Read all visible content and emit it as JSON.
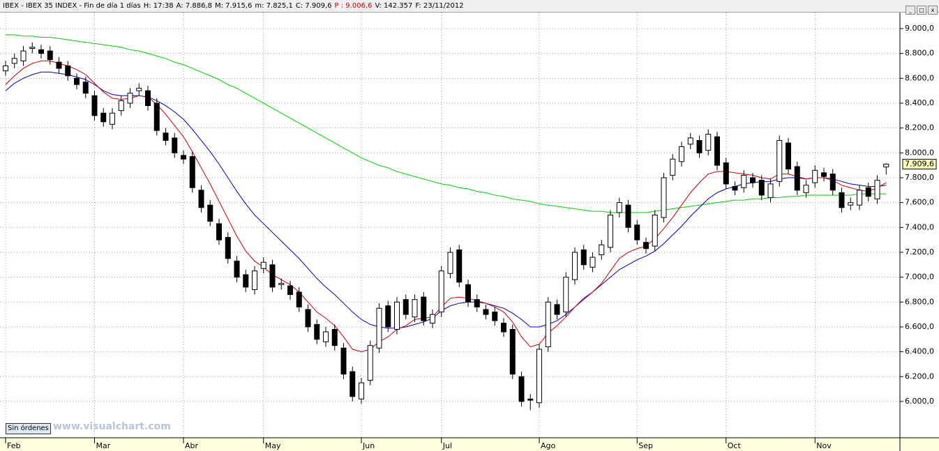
{
  "header": [
    "IBEX - IBEX 35 INDEX - Fin de día 1 días",
    "H: 17:38",
    "A: 7.886,8",
    "M: 7.915,6",
    "m: 7.825,1",
    "C: 7.909,6",
    "P : 9.006,6",
    "V: 142.357",
    "F: 23/11/2012"
  ],
  "button": "Sin órdenes",
  "watermark": "www.visualchart.com",
  "chart_data": {
    "type": "candlestick",
    "ylim": [
      5708,
      9129
    ],
    "yticks": [
      {
        "value": 6000,
        "label": "6.000,0"
      },
      {
        "value": 6200,
        "label": "6.200,0"
      },
      {
        "value": 6400,
        "label": "6.400,0"
      },
      {
        "value": 6600,
        "label": "6.600,0"
      },
      {
        "value": 6800,
        "label": "6.800,0"
      },
      {
        "value": 7000,
        "label": "7.000,0"
      },
      {
        "value": 7200,
        "label": "7.200,0"
      },
      {
        "value": 7400,
        "label": "7.400,0"
      },
      {
        "value": 7600,
        "label": "7.600,0"
      },
      {
        "value": 7800,
        "label": "7.800,0"
      },
      {
        "value": 8000,
        "label": "8.000,0"
      },
      {
        "value": 8200,
        "label": "8.200,0"
      },
      {
        "value": 8400,
        "label": "8.400,0"
      },
      {
        "value": 8600,
        "label": "8.600,0"
      },
      {
        "value": 8800,
        "label": "8.800,0"
      },
      {
        "value": 9000,
        "label": "9.000,0"
      }
    ],
    "grid": true,
    "last_price_label": "7.909,6",
    "categories": [
      "Feb",
      null,
      null,
      null,
      null,
      null,
      null,
      null,
      null,
      null,
      "Mar",
      null,
      null,
      null,
      null,
      null,
      null,
      null,
      null,
      null,
      "Abr",
      null,
      null,
      null,
      null,
      null,
      null,
      null,
      null,
      "May",
      null,
      null,
      null,
      null,
      null,
      null,
      null,
      null,
      null,
      null,
      "Jun",
      null,
      null,
      null,
      null,
      null,
      null,
      null,
      null,
      "Jul",
      null,
      null,
      null,
      null,
      null,
      null,
      null,
      null,
      null,
      null,
      "Ago",
      null,
      null,
      null,
      null,
      null,
      null,
      null,
      null,
      null,
      null,
      "Sep",
      null,
      null,
      null,
      null,
      null,
      null,
      null,
      null,
      null,
      "Oct",
      null,
      null,
      null,
      null,
      null,
      null,
      null,
      null,
      null,
      "Nov",
      null,
      null,
      null,
      null,
      null,
      null,
      null,
      null
    ],
    "open": [
      8660,
      8720,
      8740,
      8840,
      8830,
      8820,
      8730,
      8700,
      8600,
      8570,
      8460,
      8320,
      8230,
      8340,
      8400,
      8500,
      8500,
      8400,
      8160,
      8120,
      7980,
      7970,
      7700,
      7580,
      7430,
      7320,
      7130,
      7020,
      6900,
      7070,
      7100,
      6940,
      6930,
      6880,
      6740,
      6620,
      6480,
      6580,
      6430,
      6240,
      6020,
      6170,
      6430,
      6770,
      6580,
      6820,
      6680,
      6840,
      6630,
      6720,
      7030,
      7220,
      6940,
      6820,
      6740,
      6720,
      6630,
      6580,
      6200,
      6020,
      5990,
      6440,
      6780,
      6720,
      6980,
      7220,
      7080,
      7180,
      7240,
      7520,
      7580,
      7420,
      7280,
      7250,
      7480,
      7820,
      7930,
      8070,
      8100,
      8020,
      8130,
      7920,
      7730,
      7720,
      7800,
      7780,
      7640,
      7770,
      8080,
      7890,
      7680,
      7760,
      7840,
      7830,
      7680,
      7580,
      7580,
      7720,
      7630,
      7886.8
    ],
    "high": [
      8740,
      8800,
      8860,
      8890,
      8870,
      8860,
      8770,
      8740,
      8640,
      8610,
      8500,
      8360,
      8360,
      8460,
      8520,
      8560,
      8540,
      8440,
      8200,
      8160,
      8020,
      8010,
      7740,
      7620,
      7470,
      7360,
      7170,
      7060,
      7090,
      7160,
      7140,
      6990,
      6970,
      6920,
      6780,
      6660,
      6600,
      6620,
      6470,
      6280,
      6190,
      6490,
      6790,
      6810,
      6840,
      6860,
      6860,
      6880,
      6740,
      7090,
      7240,
      7260,
      6980,
      6860,
      6780,
      6760,
      6670,
      6620,
      6240,
      6060,
      6460,
      6840,
      6820,
      7040,
      7240,
      7260,
      7200,
      7300,
      7540,
      7640,
      7620,
      7460,
      7320,
      7540,
      7840,
      7990,
      8090,
      8160,
      8140,
      8190,
      8170,
      7960,
      7770,
      7860,
      7840,
      7820,
      7790,
      8140,
      8120,
      7930,
      7780,
      7900,
      7880,
      7870,
      7720,
      7640,
      7740,
      7760,
      7820,
      7915.6
    ],
    "low": [
      8620,
      8680,
      8700,
      8800,
      8760,
      8710,
      8640,
      8580,
      8510,
      8440,
      8260,
      8210,
      8190,
      8300,
      8360,
      8460,
      8340,
      8140,
      8060,
      7960,
      7910,
      7680,
      7520,
      7410,
      7260,
      7110,
      6960,
      6880,
      6860,
      7030,
      6880,
      6900,
      6820,
      6720,
      6560,
      6460,
      6440,
      6410,
      6180,
      6000,
      5980,
      6130,
      6390,
      6560,
      6540,
      6660,
      6640,
      6610,
      6590,
      6680,
      6990,
      6920,
      6760,
      6720,
      6660,
      6610,
      6520,
      6180,
      5960,
      5930,
      5950,
      6400,
      6660,
      6680,
      6940,
      7060,
      7040,
      7140,
      7200,
      7480,
      7360,
      7260,
      7190,
      7210,
      7440,
      7780,
      7890,
      8030,
      7960,
      7980,
      7860,
      7710,
      7660,
      7680,
      7720,
      7620,
      7600,
      7730,
      7830,
      7660,
      7640,
      7720,
      7770,
      7660,
      7520,
      7540,
      7540,
      7610,
      7590,
      7825.1
    ],
    "close": [
      8700,
      8760,
      8820,
      8850,
      8800,
      8750,
      8680,
      8620,
      8550,
      8480,
      8300,
      8250,
      8320,
      8420,
      8480,
      8520,
      8380,
      8180,
      8100,
      8000,
      7950,
      7720,
      7560,
      7450,
      7300,
      7150,
      7000,
      6920,
      7050,
      7120,
      6920,
      6950,
      6860,
      6760,
      6600,
      6500,
      6560,
      6450,
      6220,
      6040,
      6150,
      6450,
      6750,
      6600,
      6800,
      6700,
      6820,
      6650,
      6700,
      7050,
      7200,
      6960,
      6800,
      6760,
      6700,
      6650,
      6560,
      6220,
      6000,
      6010,
      6420,
      6800,
      6700,
      7000,
      7200,
      7100,
      7160,
      7260,
      7500,
      7600,
      7400,
      7300,
      7230,
      7500,
      7800,
      7950,
      8050,
      8120,
      8000,
      8150,
      7900,
      7750,
      7700,
      7820,
      7760,
      7660,
      7750,
      8100,
      7870,
      7700,
      7740,
      7860,
      7810,
      7700,
      7560,
      7600,
      7700,
      7650,
      7780,
      7909.6
    ],
    "lines": [
      {
        "color": "#00d000",
        "values": [
          8950,
          8950,
          8940,
          8940,
          8930,
          8930,
          8920,
          8910,
          8900,
          8890,
          8880,
          8870,
          8860,
          8850,
          8830,
          8820,
          8800,
          8780,
          8760,
          8730,
          8710,
          8680,
          8650,
          8620,
          8590,
          8550,
          8520,
          8480,
          8440,
          8400,
          8360,
          8320,
          8280,
          8240,
          8200,
          8160,
          8120,
          8080,
          8040,
          8000,
          7960,
          7930,
          7900,
          7880,
          7850,
          7830,
          7810,
          7790,
          7770,
          7750,
          7740,
          7720,
          7710,
          7690,
          7680,
          7660,
          7650,
          7630,
          7620,
          7610,
          7590,
          7580,
          7570,
          7560,
          7550,
          7540,
          7530,
          7530,
          7520,
          7520,
          7520,
          7520,
          7520,
          7530,
          7540,
          7550,
          7560,
          7570,
          7580,
          7590,
          7600,
          7610,
          7620,
          7620,
          7630,
          7630,
          7640,
          7640,
          7650,
          7650,
          7660,
          7660,
          7660,
          7660,
          7660,
          7660,
          7670,
          7670,
          7670,
          7670
        ]
      },
      {
        "color": "#0000c0",
        "values": [
          8500,
          8560,
          8600,
          8630,
          8650,
          8650,
          8640,
          8630,
          8610,
          8590,
          8550,
          8500,
          8470,
          8460,
          8460,
          8460,
          8450,
          8420,
          8380,
          8330,
          8270,
          8190,
          8100,
          8010,
          7910,
          7800,
          7690,
          7590,
          7500,
          7430,
          7360,
          7290,
          7220,
          7150,
          7070,
          6990,
          6920,
          6860,
          6790,
          6720,
          6660,
          6620,
          6600,
          6590,
          6590,
          6600,
          6620,
          6640,
          6670,
          6730,
          6770,
          6790,
          6800,
          6800,
          6790,
          6770,
          6750,
          6710,
          6660,
          6600,
          6600,
          6620,
          6650,
          6700,
          6760,
          6830,
          6880,
          6940,
          7000,
          7060,
          7100,
          7140,
          7170,
          7210,
          7270,
          7340,
          7410,
          7490,
          7560,
          7630,
          7680,
          7710,
          7730,
          7750,
          7760,
          7770,
          7770,
          7790,
          7800,
          7800,
          7790,
          7800,
          7800,
          7790,
          7770,
          7750,
          7740,
          7730,
          7730,
          7740
        ]
      },
      {
        "color": "#d00000",
        "values": [
          8550,
          8620,
          8680,
          8720,
          8740,
          8740,
          8720,
          8700,
          8670,
          8630,
          8560,
          8490,
          8440,
          8430,
          8440,
          8460,
          8450,
          8390,
          8310,
          8220,
          8130,
          8010,
          7880,
          7750,
          7610,
          7470,
          7330,
          7210,
          7130,
          7080,
          7020,
          6980,
          6940,
          6880,
          6800,
          6720,
          6670,
          6610,
          6520,
          6420,
          6400,
          6420,
          6480,
          6520,
          6580,
          6610,
          6660,
          6670,
          6680,
          6760,
          6830,
          6840,
          6830,
          6810,
          6790,
          6760,
          6720,
          6640,
          6520,
          6440,
          6460,
          6550,
          6610,
          6680,
          6760,
          6820,
          6880,
          6950,
          7050,
          7150,
          7200,
          7230,
          7250,
          7310,
          7390,
          7480,
          7580,
          7680,
          7760,
          7830,
          7850,
          7850,
          7840,
          7830,
          7820,
          7800,
          7790,
          7830,
          7830,
          7810,
          7790,
          7800,
          7800,
          7780,
          7740,
          7720,
          7700,
          7690,
          7720,
          7760
        ]
      }
    ]
  }
}
